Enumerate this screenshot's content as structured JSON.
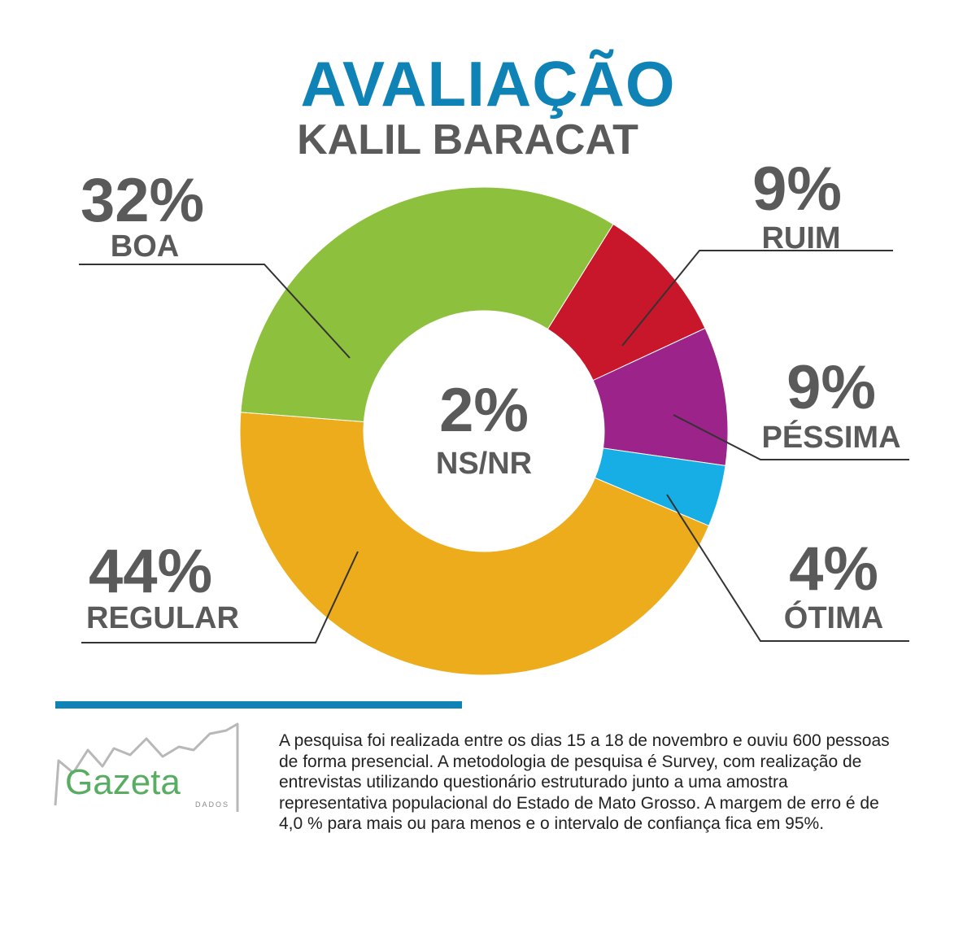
{
  "title": "AVALIAÇÃO",
  "subtitle": "KALIL BARACAT",
  "chart_data": {
    "type": "pie",
    "donut": true,
    "slices": [
      {
        "label": "RUIM",
        "value": 9,
        "pct_label": "9%",
        "color": "#c8172b"
      },
      {
        "label": "PÉSSIMA",
        "value": 9,
        "pct_label": "9%",
        "color": "#9b2389"
      },
      {
        "label": "ÓTIMA",
        "value": 4,
        "pct_label": "4%",
        "color": "#16aee5"
      },
      {
        "label": "REGULAR",
        "value": 44,
        "pct_label": "44%",
        "color": "#ecac1c"
      },
      {
        "label": "BOA",
        "value": 32,
        "pct_label": "32%",
        "color": "#8dc03d"
      }
    ],
    "center": {
      "label": "NS/NR",
      "value": 2,
      "pct_label": "2%"
    }
  },
  "logo": {
    "name": "Gazeta",
    "tagline": "DADOS"
  },
  "footnote": "A pesquisa foi realizada entre os dias 15 a 18 de novembro e ouviu 600 pessoas de forma presencial. A metodologia de pesquisa é Survey, com realização de entrevistas utilizando questionário estruturado junto a uma amostra representativa populacional do Estado de Mato Grosso. A margem de erro é de  4,0 % para mais ou para menos e o intervalo de confiança fica em 95%.",
  "colors": {
    "accent": "#0f83b5",
    "text": "#5a5a5a",
    "logo_green": "#59ad62"
  }
}
